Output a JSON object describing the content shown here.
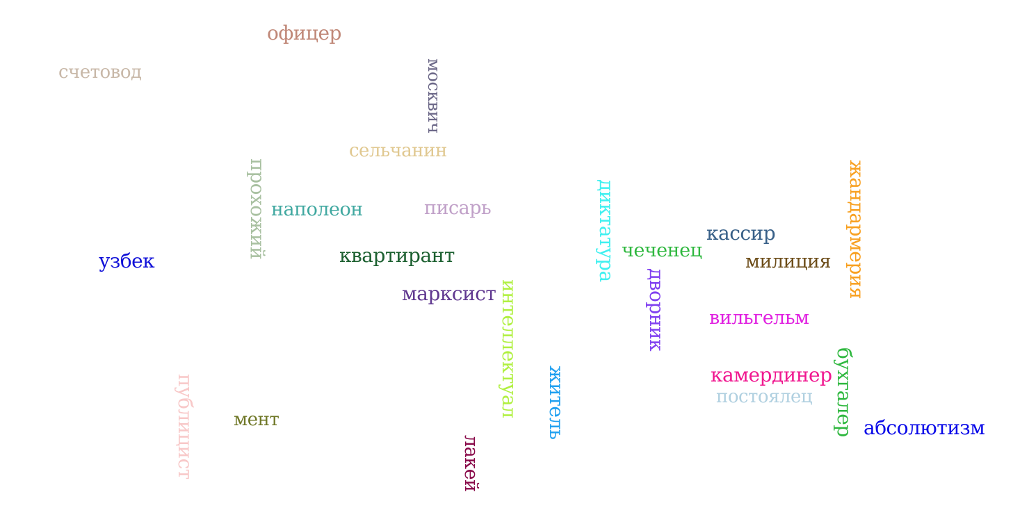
{
  "words": {
    "ofitser": {
      "text": "офицер",
      "color": "#c08878"
    },
    "schetovod": {
      "text": "счетовод",
      "color": "#c8b8a8"
    },
    "moskvich": {
      "text": "москвич",
      "color": "#6c6888"
    },
    "selchanin": {
      "text": "сельчанин",
      "color": "#e0c890"
    },
    "prokhozhiy": {
      "text": "прохожий",
      "color": "#a8c0a0"
    },
    "napoleon": {
      "text": "наполеон",
      "color": "#40a8a0"
    },
    "pisar": {
      "text": "писарь",
      "color": "#c0a0c8"
    },
    "diktatura": {
      "text": "диктатура",
      "color": "#40f0f0"
    },
    "kassir": {
      "text": "кассир",
      "color": "#386088"
    },
    "zhandarmeriya": {
      "text": "жандармерия",
      "color": "#f8a020"
    },
    "uzbek": {
      "text": "узбек",
      "color": "#1010d8"
    },
    "kvartirant": {
      "text": "квартирант",
      "color": "#1c6030"
    },
    "chechenets": {
      "text": "чеченец",
      "color": "#30b840"
    },
    "militsiya": {
      "text": "милиция",
      "color": "#6c4c18"
    },
    "marksist": {
      "text": "марксист",
      "color": "#603890"
    },
    "intellektual": {
      "text": "интеллектуал",
      "color": "#b0f040"
    },
    "dvornik": {
      "text": "дворник",
      "color": "#8040f0"
    },
    "vilgelm": {
      "text": "вильгельм",
      "color": "#e020e0"
    },
    "publitsist": {
      "text": "публицист",
      "color": "#f8c8c8"
    },
    "zhitel": {
      "text": "житель",
      "color": "#20a0f0"
    },
    "kamerdiner": {
      "text": "камердинер",
      "color": "#f01890"
    },
    "bukhgalter": {
      "text": "бухгалер",
      "color": "#30b840"
    },
    "postoyalets": {
      "text": "постоялец",
      "color": "#b0d0e0"
    },
    "ment": {
      "text": "мент",
      "color": "#707828"
    },
    "absolyutizm": {
      "text": "абсолютизм",
      "color": "#0808e8"
    },
    "lakey": {
      "text": "лакей",
      "color": "#880848"
    }
  }
}
